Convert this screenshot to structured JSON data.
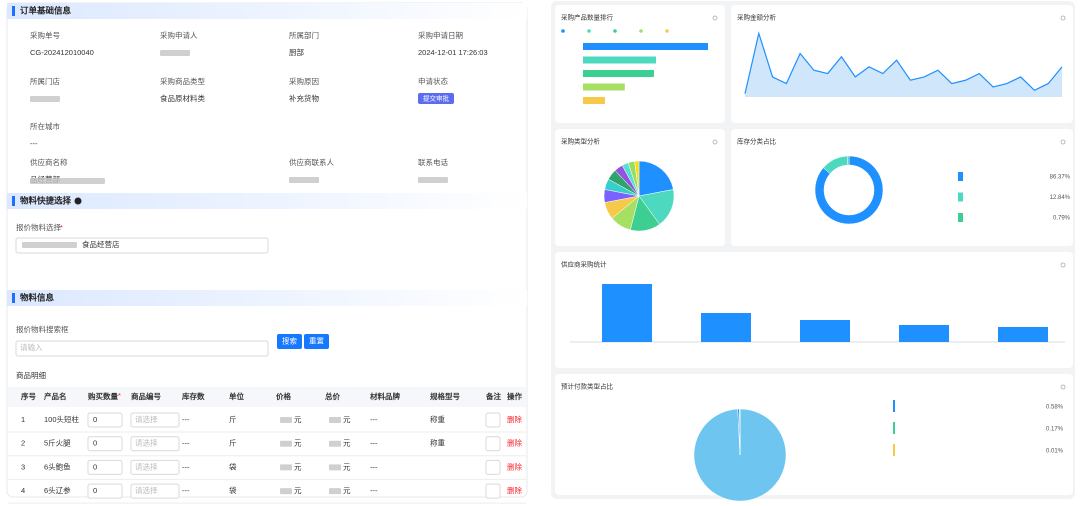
{
  "order_info": {
    "title": "订单基础信息",
    "fields": [
      {
        "label": "采购单号",
        "value": "CG-202412010040"
      },
      {
        "label": "采购申请人"
      },
      {
        "label": "所属部门",
        "value": "厨部"
      },
      {
        "label": "采购申请日期",
        "value": "2024-12-01 17:26:03"
      },
      {
        "label": "所属门店"
      },
      {
        "label": "采购商品类型",
        "value": "食品原材料类"
      },
      {
        "label": "采购原因",
        "value": "补充货物"
      },
      {
        "label": "申请状态",
        "badge": "提交审批"
      },
      {
        "label": "所在城市",
        "value": "---"
      },
      {
        "label": "供应商名称",
        "value": "品经营部"
      },
      {
        "label": "供应商联系人"
      },
      {
        "label": "联系电话"
      }
    ]
  },
  "quick_select": {
    "title": "物料快捷选择",
    "label": "报价物料选择",
    "required": "*",
    "input_value": "食品经营店"
  },
  "material": {
    "title": "物料信息",
    "search_label": "报价物料搜索框",
    "placeholder": "请输入",
    "buttons": [
      "搜索",
      "重置"
    ],
    "detail_title": "商品明细",
    "qty_required": "*",
    "columns": [
      "序号",
      "产品名",
      "购买数量",
      "商品编号",
      "库存数",
      "单位",
      "价格",
      "总价",
      "材料品牌",
      "规格型号",
      "备注",
      "操作"
    ],
    "rows": [
      [
        "1",
        "100头短柱",
        "0",
        "请选择",
        "---",
        "斤",
        "元",
        "元",
        "---",
        "称重",
        null,
        "删除"
      ],
      [
        "2",
        "5斤火腿",
        "0",
        "请选择",
        "---",
        "斤",
        "元",
        "元",
        "---",
        "称重",
        null,
        "删除"
      ],
      [
        "3",
        "6头鲍鱼",
        "0",
        "请选择",
        "---",
        "袋",
        "元",
        "元",
        "---",
        null,
        null,
        "删除"
      ],
      [
        "4",
        "6头辽参",
        "0",
        "请选择",
        "---",
        "袋",
        "元",
        "元",
        "---",
        null,
        null,
        "删除"
      ]
    ]
  },
  "dashboard": {
    "rank": {
      "type": "bar",
      "title": "采购产品数量排行",
      "values": [
        4847,
        2830,
        2750,
        1620,
        850
      ],
      "colors": [
        "#1e90ff",
        "#4dd9c0",
        "#3ccf91",
        "#a5e063",
        "#f7c948"
      ]
    },
    "amount": {
      "type": "line",
      "title": "采购金额分析",
      "values": [
        5,
        95,
        30,
        20,
        65,
        40,
        35,
        60,
        30,
        45,
        35,
        55,
        25,
        30,
        40,
        20,
        25,
        35,
        15,
        20,
        30,
        10,
        20,
        45
      ],
      "color": "#1e90ff"
    },
    "category": {
      "type": "pie",
      "title": "采购类型分析",
      "values": [
        22,
        18,
        14,
        10,
        8,
        6,
        5,
        5,
        4,
        3,
        3,
        2
      ],
      "colors": [
        "#1e90ff",
        "#4dd9c0",
        "#3ccf91",
        "#a5e063",
        "#f7c948",
        "#7b61ff",
        "#36cfc9",
        "#2fa36b",
        "#9254de",
        "#5cdbd3",
        "#95de64",
        "#fadb14"
      ]
    },
    "stock": {
      "type": "donut",
      "title": "库存分类占比",
      "values": [
        86.37,
        12.84,
        0.79
      ],
      "value_labels": [
        "86.37%",
        "12.84%",
        "0.79%"
      ],
      "colors": [
        "#1e90ff",
        "#4dd9c0",
        "#3ccf91"
      ]
    },
    "supplier": {
      "type": "bar",
      "title": "供应商采购统计",
      "values": [
        58,
        29,
        22,
        17,
        15
      ],
      "color": "#1e90ff"
    },
    "payment": {
      "type": "pie",
      "title": "预计付款类型占比",
      "values": [
        98.2,
        0.58,
        0.17,
        0.01
      ],
      "value_labels": [
        null,
        "0.58%",
        "0.17%",
        "0.01%"
      ],
      "colors": [
        "#6ec6f0",
        "#1e90ff",
        "#3ccf91",
        "#f7c948"
      ]
    }
  }
}
